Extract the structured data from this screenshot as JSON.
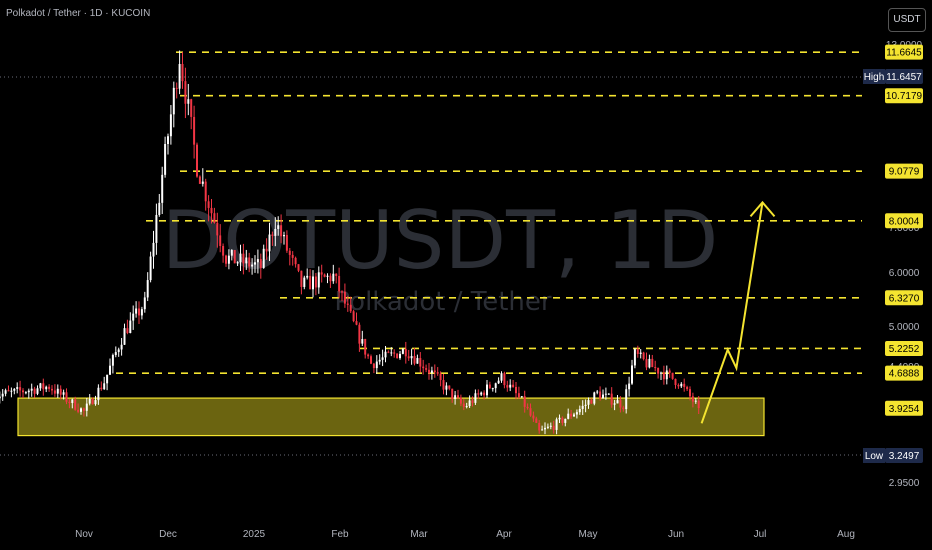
{
  "header": {
    "title": "Polkadot / Tether · 1D · KUCOIN"
  },
  "currency_button": {
    "label": "USDT"
  },
  "watermark": {
    "symbol": "DOTUSDT, 1D",
    "description": "Polkadot / Tether"
  },
  "colors": {
    "level_line": "#f4e430",
    "zone_fill": "#6b6410",
    "candle_up": "#ffffff",
    "candle_down": "#f23645",
    "arrow": "#f4e430",
    "tag_bg": "#1e2a4a"
  },
  "chart_data": {
    "type": "candlestick",
    "title": "Polkadot / Tether · 1D · KUCOIN",
    "xlabel": "",
    "ylabel": "",
    "y_ticks": [
      "13.0000",
      "7.0000",
      "6.0000",
      "5.0000",
      "4.4000",
      "2.9500"
    ],
    "x_ticks": [
      "Nov",
      "Dec",
      "2025",
      "Feb",
      "Mar",
      "Apr",
      "May",
      "Jun",
      "Jul",
      "Aug"
    ],
    "levels": [
      {
        "value": 11.6645,
        "label": "11.6645"
      },
      {
        "value": 10.7179,
        "label": "10.7179"
      },
      {
        "value": 9.0779,
        "label": "9.0779"
      },
      {
        "value": 8.0004,
        "label": "8.0004"
      },
      {
        "value": 6.327,
        "label": "6.3270"
      },
      {
        "value": 5.2252,
        "label": "5.2252"
      },
      {
        "value": 4.6888,
        "label": "4.6888"
      },
      {
        "value": 3.9254,
        "label": "3.9254"
      }
    ],
    "high": {
      "label": "High",
      "value": "11.6457"
    },
    "low": {
      "label": "Low",
      "value": "3.2497"
    },
    "support_zone": {
      "from": 3.55,
      "to": 3.93
    },
    "projection_path": [
      {
        "date": "2025-06-02",
        "price": 3.6
      },
      {
        "date": "2025-06-11",
        "price": 5.2
      },
      {
        "date": "2025-06-14",
        "price": 4.8
      },
      {
        "date": "2025-06-23",
        "price": 8.4
      }
    ],
    "price_waypoints": [
      {
        "date": "2024-10-01",
        "price": 4.2
      },
      {
        "date": "2024-10-20",
        "price": 4.4
      },
      {
        "date": "2024-11-01",
        "price": 3.85
      },
      {
        "date": "2024-11-08",
        "price": 4.5
      },
      {
        "date": "2024-11-15",
        "price": 5.6
      },
      {
        "date": "2024-11-22",
        "price": 6.2
      },
      {
        "date": "2024-11-28",
        "price": 9.0
      },
      {
        "date": "2024-12-04",
        "price": 11.6
      },
      {
        "date": "2024-12-10",
        "price": 9.2
      },
      {
        "date": "2024-12-20",
        "price": 7.2
      },
      {
        "date": "2025-01-01",
        "price": 7.0
      },
      {
        "date": "2025-01-06",
        "price": 8.0
      },
      {
        "date": "2025-01-15",
        "price": 6.6
      },
      {
        "date": "2025-01-26",
        "price": 6.8
      },
      {
        "date": "2025-02-03",
        "price": 5.6
      },
      {
        "date": "2025-02-08",
        "price": 4.9
      },
      {
        "date": "2025-02-20",
        "price": 5.2
      },
      {
        "date": "2025-03-01",
        "price": 4.7
      },
      {
        "date": "2025-03-08",
        "price": 4.2
      },
      {
        "date": "2025-03-12",
        "price": 3.95
      },
      {
        "date": "2025-03-25",
        "price": 4.6
      },
      {
        "date": "2025-04-02",
        "price": 4.0
      },
      {
        "date": "2025-04-07",
        "price": 3.4
      },
      {
        "date": "2025-04-12",
        "price": 3.55
      },
      {
        "date": "2025-04-22",
        "price": 3.95
      },
      {
        "date": "2025-04-27",
        "price": 4.25
      },
      {
        "date": "2025-05-06",
        "price": 4.0
      },
      {
        "date": "2025-05-10",
        "price": 5.1
      },
      {
        "date": "2025-05-14",
        "price": 4.9
      },
      {
        "date": "2025-05-25",
        "price": 4.5
      },
      {
        "date": "2025-06-01",
        "price": 3.93
      }
    ]
  }
}
